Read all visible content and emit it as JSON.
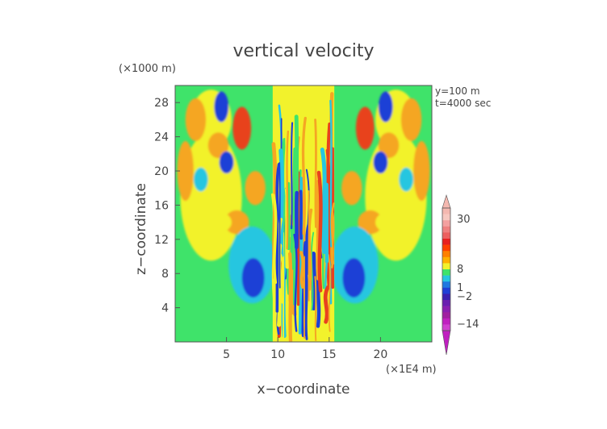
{
  "chart_data": {
    "type": "heatmap",
    "title": "vertical velocity",
    "xlabel": "x−coordinate",
    "ylabel": "z−coordinate",
    "x_unit": "(×1E4 m)",
    "y_unit": "(×1000 m)",
    "annotations": [
      "y=100 m",
      "t=4000 sec"
    ],
    "xlim": [
      0,
      25
    ],
    "ylim": [
      0,
      30
    ],
    "xticks": [
      5,
      10,
      15,
      20
    ],
    "yticks": [
      4,
      8,
      12,
      16,
      20,
      24,
      28
    ],
    "colorbar": {
      "tick_labels": [
        "30",
        "8",
        "1",
        "−2",
        "−14"
      ],
      "tick_values": [
        30,
        8,
        1,
        -2,
        -14
      ],
      "extend": "both"
    },
    "background_value": 0,
    "colors": {
      "background_field": "#3fe36a",
      "weak_positive": "#f2f22c",
      "moderate_positive": "#f5a623",
      "strong_positive": "#e8421e",
      "weak_negative": "#27c6e0",
      "strong_negative": "#1f3fd6",
      "extreme_negative": "#8a1fb0",
      "extreme_positive": "#f4b8b0"
    }
  }
}
